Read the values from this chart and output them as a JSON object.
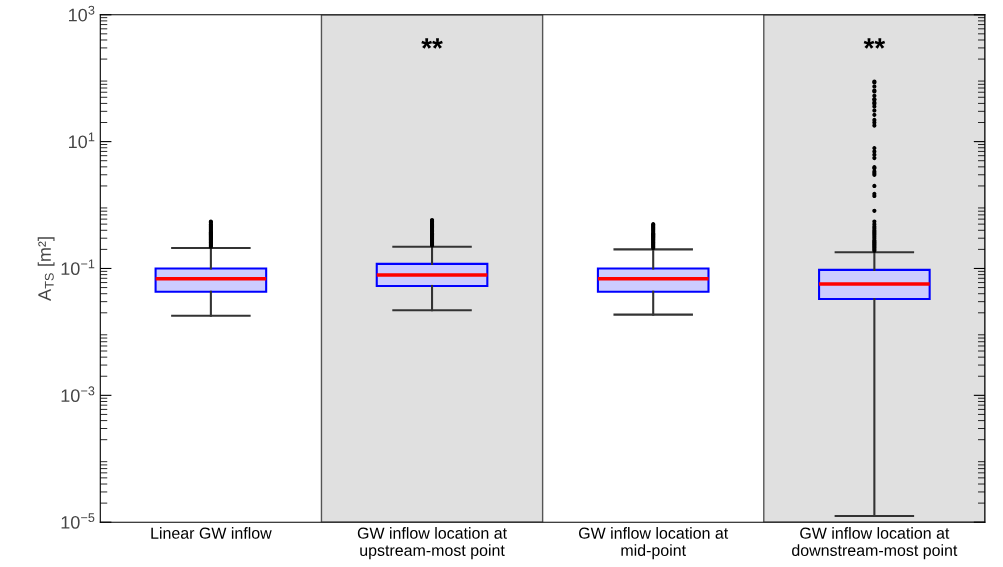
{
  "chart_data": {
    "type": "box",
    "categories": [
      "Linear GW inflow",
      "GW inflow location at\nupstream-most point",
      "GW inflow location at\nmid-point",
      "GW inflow location at\ndownstream-most point"
    ],
    "ylabel": "A$_{TS}$ [m²]",
    "log": true,
    "ylim": [
      1e-05,
      1000
    ],
    "yticks": [
      {
        "value": 1e-05,
        "label": "10$^{−5}$"
      },
      {
        "value": 0.001,
        "label": "10$^{−3}$"
      },
      {
        "value": 0.1,
        "label": "10$^{−1}$"
      },
      {
        "value": 10,
        "label": "10$^{1}$"
      },
      {
        "value": 1000,
        "label": "10$^{3}$"
      }
    ],
    "grid": false,
    "color": "#ccccff",
    "boxes": [
      {
        "low": 0.018,
        "q1": 0.043,
        "median": 0.069,
        "q3": 0.1,
        "high": 0.21,
        "outliers": [
          0.22,
          0.23,
          0.24,
          0.25,
          0.26,
          0.27,
          0.28,
          0.29,
          0.3,
          0.31,
          0.32,
          0.33,
          0.34,
          0.35,
          0.36,
          0.37,
          0.38,
          0.4,
          0.42,
          0.44,
          0.46,
          0.48,
          0.5,
          0.53,
          0.55
        ]
      },
      {
        "low": 0.022,
        "q1": 0.053,
        "median": 0.079,
        "q3": 0.118,
        "high": 0.22,
        "outliers": [
          0.23,
          0.24,
          0.25,
          0.26,
          0.27,
          0.28,
          0.29,
          0.3,
          0.31,
          0.32,
          0.33,
          0.34,
          0.35,
          0.36,
          0.38,
          0.4,
          0.42,
          0.44,
          0.46,
          0.48,
          0.5,
          0.52,
          0.55,
          0.58
        ]
      },
      {
        "low": 0.0187,
        "q1": 0.043,
        "median": 0.069,
        "q3": 0.1,
        "high": 0.2,
        "outliers": [
          0.21,
          0.22,
          0.23,
          0.24,
          0.25,
          0.26,
          0.27,
          0.28,
          0.29,
          0.3,
          0.31,
          0.32,
          0.33,
          0.34,
          0.35,
          0.36,
          0.38,
          0.4,
          0.42,
          0.44,
          0.46,
          0.48,
          0.5
        ]
      },
      {
        "low": 1.25e-05,
        "q1": 0.033,
        "median": 0.057,
        "q3": 0.095,
        "high": 0.18,
        "outliers": [
          0.19,
          0.2,
          0.21,
          0.22,
          0.23,
          0.24,
          0.25,
          0.26,
          0.27,
          0.28,
          0.3,
          0.32,
          0.34,
          0.36,
          0.38,
          0.4,
          0.43,
          0.46,
          0.5,
          0.55,
          0.81,
          1.39,
          1.5,
          2.0,
          2.99,
          3.18,
          3.37,
          3.8,
          3.95,
          5.5,
          6.2,
          7.0,
          7.9,
          17.9,
          20.0,
          22.0,
          26.4,
          30.9,
          35.7,
          39.4,
          41.3,
          45.6,
          46.7,
          52.7,
          61.6,
          63.9,
          74,
          85.5,
          88.7
        ]
      }
    ],
    "bands": [
      {
        "axis": "x",
        "from": "GW inflow location at\nupstream-most point",
        "to": "GW inflow location at\nupstream-most point",
        "color": "#e0e0e0"
      },
      {
        "axis": "x",
        "from": "GW inflow location at\ndownstream-most point",
        "to": "GW inflow location at\ndownstream-most point",
        "color": "#e0e0e0"
      }
    ],
    "annotations": [
      "**",
      "**"
    ]
  }
}
